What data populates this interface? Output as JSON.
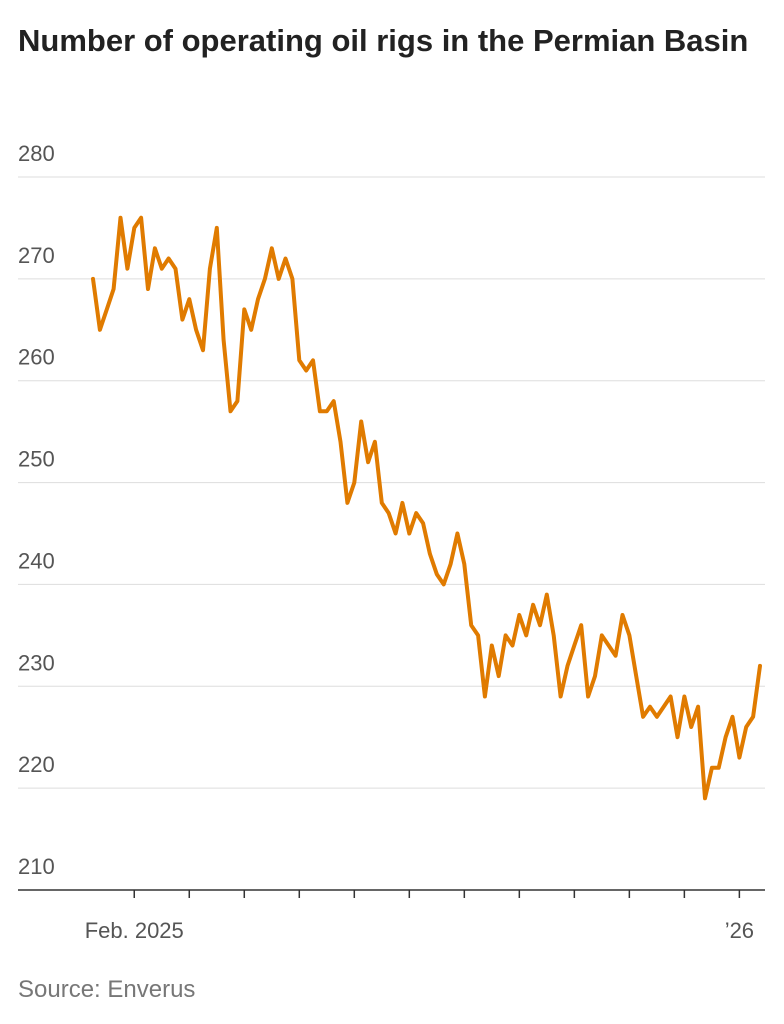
{
  "chart_data": {
    "type": "line",
    "title": "Number of operating oil rigs in the Permian Basin",
    "source": "Source: Enverus",
    "categories": [
      null,
      null,
      null,
      null,
      null,
      null,
      "Feb. 2025",
      null,
      null,
      null,
      null,
      null,
      null,
      null,
      null,
      null,
      null,
      null,
      null,
      null,
      null,
      null,
      null,
      null,
      null,
      null,
      null,
      null,
      null,
      null,
      null,
      null,
      null,
      null,
      null,
      null,
      null,
      null,
      null,
      null,
      null,
      null,
      null,
      null,
      null,
      null,
      null,
      null,
      null,
      null,
      null,
      null,
      null,
      null,
      null,
      null,
      null,
      null,
      null,
      null,
      null,
      null,
      null,
      null,
      null,
      null,
      null,
      null,
      null,
      null,
      null,
      null,
      null,
      null,
      null,
      null,
      null,
      null,
      null,
      null,
      null,
      null,
      null,
      null,
      null,
      null,
      null,
      null,
      null,
      null,
      null,
      null,
      null,
      null,
      "’26",
      null,
      null,
      null
    ],
    "values": [
      270,
      265,
      267,
      269,
      276,
      271,
      275,
      276,
      269,
      273,
      271,
      272,
      271,
      266,
      268,
      265,
      263,
      271,
      275,
      264,
      257,
      258,
      267,
      265,
      268,
      270,
      273,
      270,
      272,
      270,
      262,
      261,
      262,
      257,
      257,
      258,
      254,
      248,
      250,
      256,
      252,
      254,
      248,
      247,
      245,
      248,
      245,
      247,
      246,
      243,
      241,
      240,
      242,
      245,
      242,
      236,
      235,
      229,
      234,
      231,
      235,
      234,
      237,
      235,
      238,
      236,
      239,
      235,
      229,
      232,
      234,
      236,
      229,
      231,
      235,
      234,
      233,
      237,
      235,
      231,
      227,
      228,
      227,
      228,
      229,
      225,
      229,
      226,
      228,
      219,
      222,
      222,
      225,
      227,
      223,
      226,
      227,
      232
    ],
    "color": "#e07b00",
    "ylim": [
      210,
      280
    ],
    "yticks": [
      210,
      220,
      230,
      240,
      250,
      260,
      270,
      280
    ],
    "grid": true
  }
}
